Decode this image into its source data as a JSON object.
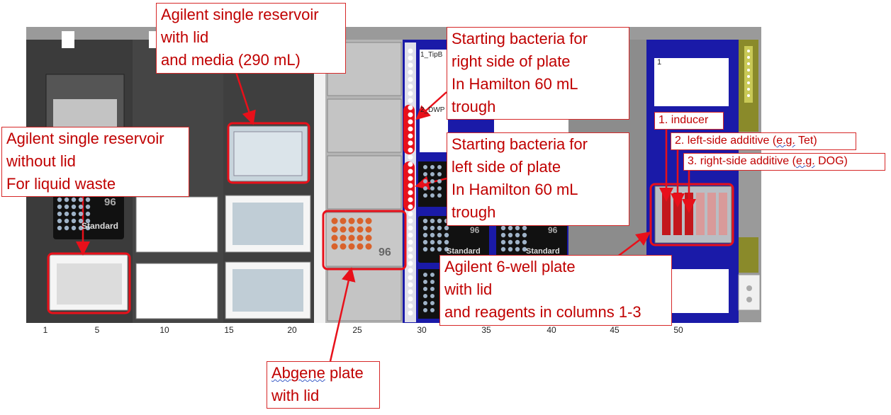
{
  "callouts": {
    "media_reservoir": [
      "Agilent single reservoir",
      "with lid",
      "and media (290 mL)"
    ],
    "waste_reservoir": [
      "Agilent single reservoir",
      "without lid",
      "For liquid waste"
    ],
    "bacteria_right": [
      "Starting bacteria for",
      "right side of plate",
      "In Hamilton 60 mL",
      "trough"
    ],
    "bacteria_left": [
      "Starting bacteria for",
      "left side of plate",
      "In Hamilton 60 mL",
      "trough"
    ],
    "inducer": "1. inducer",
    "left_additive": {
      "pre": "2. left-side additive (",
      "eg": "e.g.",
      "post": " Tet)"
    },
    "right_additive": {
      "pre": "3. right-side additive (",
      "eg": "e.g.",
      "post": " DOG)"
    },
    "six_well": [
      "Agilent 6-well plate",
      "with lid",
      "and reagents in columns 1-3"
    ],
    "abgene": {
      "line1": "Abgene",
      "line1_rest": " plate",
      "line2": "with lid"
    }
  },
  "deck": {
    "axis_numbers": [
      "1",
      "5",
      "10",
      "15",
      "20",
      "25",
      "30",
      "35",
      "40",
      "45",
      "50"
    ],
    "tip_carrier_label": "1_TipB",
    "dwp_label": "2_DWP",
    "plate_count_label": "96",
    "plate_type_label": "Standard",
    "position_label": "1"
  },
  "colors": {
    "highlight_red": "#e8101a",
    "callout_text": "#c00000",
    "carrier_blue": "#1a1aa8",
    "deck_gray": "#8c8c8c",
    "dark_carrier": "#3a3a3a"
  }
}
